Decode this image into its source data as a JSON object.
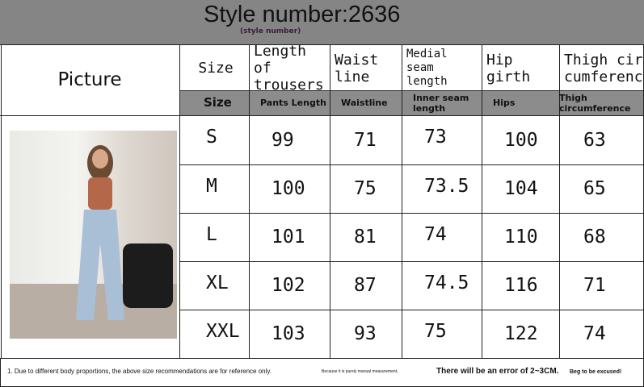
{
  "header": {
    "title": "Style number:2636",
    "subtitle": "(style number)"
  },
  "table": {
    "picture_label": "Picture",
    "columns": [
      "Size",
      "Length of trousers",
      "Waist line",
      "Medial seam length",
      "Hip girth",
      "Thigh cir cumference"
    ],
    "columns_en": [
      "Size",
      "Pants Length",
      "Waistline",
      "Inner seam length",
      "Hips",
      "Thigh circumference"
    ],
    "rows": [
      [
        "S",
        "99",
        "71",
        "73",
        "100",
        "63"
      ],
      [
        "M",
        "100",
        "75",
        "73.5",
        "104",
        "65"
      ],
      [
        "L",
        "101",
        "81",
        "74",
        "110",
        "68"
      ],
      [
        "XL",
        "102",
        "87",
        "74.5",
        "116",
        "71"
      ],
      [
        "XXL",
        "103",
        "93",
        "75",
        "122",
        "74"
      ]
    ]
  },
  "footer": {
    "note1": "1. Due to different body proportions, the above size recommendations are for reference only.",
    "note2": "Because it is purely manual measurement,",
    "note3": "There will be an error of 2~3CM.",
    "note4": "Beg to be excused!"
  }
}
